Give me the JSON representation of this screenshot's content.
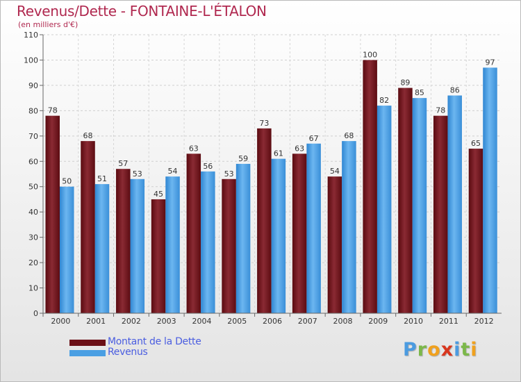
{
  "title": "Revenus/Dette - FONTAINE-L'ÉTALON",
  "subtitle": "(en milliers d'€)",
  "legend": [
    {
      "label": "Montant de la Dette",
      "color": "#6b0f16"
    },
    {
      "label": "Revenus",
      "color": "#4a9fe3"
    }
  ],
  "logo": {
    "letters": [
      "P",
      "r",
      "o",
      "x",
      "i",
      "t",
      "i"
    ],
    "colors": [
      "#4b9be0",
      "#7cb84a",
      "#f0a11e",
      "#d8361e",
      "#4b9be0",
      "#7cb84a",
      "#f0a11e"
    ]
  },
  "colors": {
    "title": "#b0284f",
    "debt": "#6b0f16",
    "revenue": "#4a9fe3"
  },
  "chart_data": {
    "type": "bar",
    "title": "Revenus/Dette - FONTAINE-L'ÉTALON",
    "subtitle": "(en milliers d'€)",
    "xlabel": "",
    "ylabel": "",
    "ylim": [
      0,
      110
    ],
    "yticks": [
      0,
      10,
      20,
      30,
      40,
      50,
      60,
      70,
      80,
      90,
      100,
      110
    ],
    "grid": true,
    "legend_position": "bottom-left",
    "categories": [
      "2000",
      "2001",
      "2002",
      "2003",
      "2004",
      "2005",
      "2006",
      "2007",
      "2008",
      "2009",
      "2010",
      "2011",
      "2012"
    ],
    "series": [
      {
        "name": "Montant de la Dette",
        "color": "#6b0f16",
        "values": [
          78,
          68,
          57,
          45,
          63,
          53,
          73,
          63,
          54,
          100,
          89,
          78,
          65
        ]
      },
      {
        "name": "Revenus",
        "color": "#4a9fe3",
        "values": [
          50,
          51,
          53,
          54,
          56,
          59,
          61,
          67,
          68,
          82,
          85,
          86,
          97
        ]
      }
    ]
  }
}
